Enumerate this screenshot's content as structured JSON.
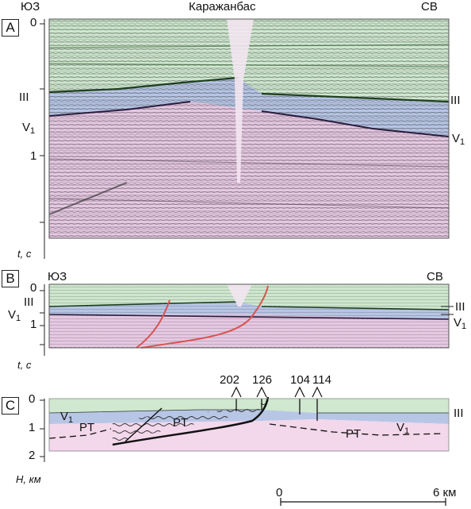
{
  "title": "Каражанбас",
  "panels": {
    "A": {
      "label": "A",
      "left_dir": "ЮЗ",
      "right_dir": "СВ",
      "ticks": [
        "0",
        "1"
      ],
      "horizon_III": "III",
      "horizon_V": "V",
      "horizon_V_sub": "1",
      "axis_label": "t, c"
    },
    "B": {
      "label": "B",
      "left_dir": "ЮЗ",
      "right_dir": "СВ",
      "ticks": [
        "0",
        "1"
      ],
      "horizon_III": "III",
      "horizon_V": "V",
      "horizon_V_sub": "1",
      "axis_label": "t, c"
    },
    "C": {
      "label": "C",
      "ticks": [
        "0",
        "1",
        "2"
      ],
      "horizon_III": "III",
      "horizon_V": "V",
      "horizon_V_sub": "1",
      "rt_label": "PT",
      "wells": [
        "202",
        "126",
        "104",
        "114"
      ],
      "axis_label": "H, км"
    }
  },
  "scale": {
    "start": "0",
    "end": "6 км"
  },
  "colors": {
    "upper_layer": "#cfe8cf",
    "middle_layer": "#b8c6e6",
    "lower_layer": "#e7c9e3",
    "fault": "#d9534f"
  }
}
